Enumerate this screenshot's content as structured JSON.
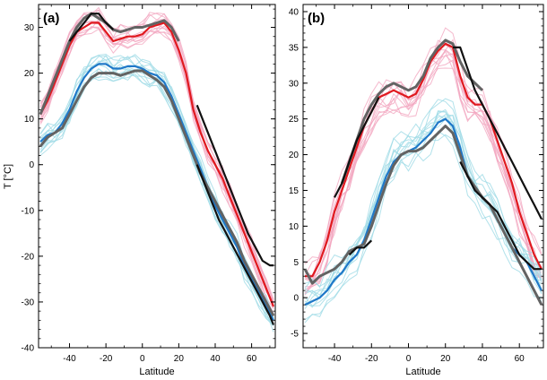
{
  "figure": {
    "ylabel": "T [°C]",
    "xlabel": "Latitude"
  },
  "chart_data": [
    {
      "type": "line",
      "panel_label": "(a)",
      "xlabel": "Latitude",
      "ylabel": "T [°C]",
      "xlim": [
        -57,
        73
      ],
      "ylim": [
        -40,
        35
      ],
      "xticks": [
        -40,
        -20,
        0,
        20,
        40,
        60
      ],
      "yticks": [
        -40,
        -30,
        -20,
        -10,
        0,
        10,
        20,
        30
      ],
      "grid": false,
      "series": [
        {
          "color": "#e0191f",
          "role": "warm-model-mean",
          "x": [
            -56,
            -52,
            -48,
            -44,
            -40,
            -36,
            -32,
            -28,
            -24,
            -20,
            -16,
            -12,
            -8,
            -4,
            0,
            4,
            8,
            12,
            16,
            20,
            24,
            28,
            32,
            36,
            40,
            44,
            48,
            52,
            56,
            60,
            64,
            68,
            72
          ],
          "y": [
            11,
            14,
            18,
            22,
            26,
            29,
            30,
            31,
            31,
            29,
            27,
            27.5,
            28,
            28,
            28.5,
            30,
            30.5,
            31,
            29,
            25,
            20,
            12,
            7,
            3,
            0,
            -3,
            -7,
            -11,
            -15,
            -19,
            -23,
            -27,
            -31
          ]
        },
        {
          "color": "#636363",
          "role": "warm-observed-grey",
          "x": [
            -56,
            -52,
            -48,
            -44,
            -40,
            -36,
            -32,
            -28,
            -24,
            -20,
            -16,
            -12,
            -8,
            -4,
            0,
            4,
            8,
            12,
            16,
            20
          ],
          "y": [
            11,
            15,
            19,
            23,
            27,
            30,
            32,
            33,
            32,
            31,
            29.5,
            29,
            29.5,
            30,
            30,
            30.5,
            31,
            31.5,
            30,
            27
          ]
        },
        {
          "color": "#111111",
          "role": "warm-observed-black",
          "x": [
            -40,
            -36,
            -32,
            -28,
            -24,
            -20,
            -16
          ],
          "y": [
            27,
            29,
            31,
            33,
            33,
            31,
            29.5
          ]
        },
        {
          "color": "#111111",
          "role": "warm-observed-black",
          "x": [
            30,
            34,
            38,
            42,
            46,
            50,
            54,
            58,
            62,
            66,
            70,
            72
          ],
          "y": [
            13,
            9,
            5,
            1,
            -3,
            -7,
            -11,
            -15,
            -18,
            -21,
            -22,
            -22
          ]
        },
        {
          "color": "#1f78c8",
          "role": "cold-model-mean",
          "x": [
            -56,
            -52,
            -48,
            -44,
            -40,
            -36,
            -32,
            -28,
            -24,
            -20,
            -16,
            -12,
            -8,
            -4,
            0,
            4,
            8,
            12,
            16,
            20,
            24,
            28,
            32,
            36,
            40,
            44,
            48,
            52,
            56,
            60,
            64,
            68,
            72
          ],
          "y": [
            5,
            6.5,
            7,
            9,
            12,
            16,
            19,
            21,
            22,
            22,
            21,
            21,
            21.5,
            21.5,
            21,
            20,
            19.5,
            18,
            15,
            11,
            7,
            3,
            -1,
            -5,
            -9,
            -12,
            -15,
            -18,
            -22,
            -25,
            -28,
            -31,
            -34
          ]
        },
        {
          "color": "#636363",
          "role": "cold-observed-grey",
          "x": [
            -56,
            -52,
            -48,
            -44,
            -40,
            -36,
            -32,
            -28,
            -24,
            -20,
            -16,
            -12,
            -8,
            -4,
            0,
            4,
            8,
            12,
            16,
            20,
            24,
            28,
            32,
            36,
            40,
            44,
            48,
            52,
            56,
            60,
            64,
            68,
            72
          ],
          "y": [
            4,
            6,
            7,
            8,
            11,
            14,
            17,
            19,
            20,
            20,
            20,
            19.5,
            20,
            20.5,
            20.5,
            19.5,
            18.5,
            17,
            14,
            10,
            6,
            2,
            -2,
            -5,
            -8,
            -11,
            -14,
            -17,
            -21,
            -24,
            -27,
            -30,
            -33
          ]
        },
        {
          "color": "#111111",
          "role": "cold-observed-black",
          "x": [
            30,
            34,
            38,
            42,
            46,
            50,
            54,
            58,
            62,
            66,
            70,
            72
          ],
          "y": [
            0,
            -4,
            -8,
            -12,
            -15,
            -18,
            -21,
            -24,
            -27,
            -30,
            -33,
            -35
          ]
        }
      ]
    },
    {
      "type": "line",
      "panel_label": "(b)",
      "xlabel": "Latitude",
      "ylabel": "",
      "xlim": [
        -57,
        73
      ],
      "ylim": [
        -7,
        41
      ],
      "xticks": [
        -40,
        -20,
        0,
        20,
        40,
        60
      ],
      "yticks": [
        -5,
        0,
        5,
        10,
        15,
        20,
        25,
        30,
        35,
        40
      ],
      "grid": false,
      "series": [
        {
          "color": "#e0191f",
          "role": "warm-model-mean",
          "x": [
            -56,
            -52,
            -48,
            -44,
            -40,
            -36,
            -32,
            -28,
            -24,
            -20,
            -16,
            -12,
            -8,
            -4,
            0,
            4,
            8,
            12,
            16,
            20,
            24,
            28,
            32,
            36,
            40,
            44,
            48,
            52,
            56,
            60,
            64,
            68,
            72
          ],
          "y": [
            3,
            3,
            5,
            8,
            12,
            15,
            18,
            21,
            24,
            26,
            28,
            28.5,
            29,
            28.5,
            28,
            28.5,
            30.5,
            33,
            34.5,
            35.5,
            35,
            31,
            28,
            27,
            27,
            25,
            22,
            19,
            16,
            12,
            9,
            6,
            4
          ]
        },
        {
          "color": "#636363",
          "role": "warm-observed-grey",
          "x": [
            -36,
            -32,
            -28,
            -24,
            -20,
            -16,
            -12,
            -8,
            -4,
            0,
            4,
            8,
            12,
            16,
            20,
            24,
            28,
            32,
            36,
            40
          ],
          "y": [
            16,
            19,
            22,
            25,
            27,
            28.5,
            29.5,
            30,
            29.5,
            29,
            29.5,
            31,
            33.5,
            35,
            36,
            35.5,
            33,
            31,
            30,
            29
          ]
        },
        {
          "color": "#111111",
          "role": "warm-observed-black",
          "x": [
            -40,
            -36,
            -32,
            -28,
            -24,
            -20,
            -16
          ],
          "y": [
            14,
            16,
            19,
            22,
            24,
            26,
            28
          ]
        },
        {
          "color": "#111111",
          "role": "warm-observed-black",
          "x": [
            24,
            28,
            32,
            36,
            40,
            44,
            48,
            52,
            56,
            60,
            64,
            68,
            72
          ],
          "y": [
            35,
            35,
            32,
            29,
            27,
            25,
            23,
            21,
            19,
            17,
            15,
            13,
            11
          ]
        },
        {
          "color": "#1f78c8",
          "role": "cold-model-mean",
          "x": [
            -56,
            -52,
            -48,
            -44,
            -40,
            -36,
            -32,
            -28,
            -24,
            -20,
            -16,
            -12,
            -8,
            -4,
            0,
            4,
            8,
            12,
            16,
            20,
            24,
            28,
            32,
            36,
            40,
            44,
            48,
            52,
            56,
            60,
            64,
            68,
            72
          ],
          "y": [
            -1,
            -0.5,
            0,
            1,
            2.5,
            3.5,
            5,
            6,
            8,
            11,
            14,
            17,
            19,
            20,
            20.5,
            21,
            22,
            23,
            24.5,
            25,
            24,
            21,
            17,
            15,
            14,
            13,
            11,
            9,
            7,
            6,
            5,
            3,
            1
          ]
        },
        {
          "color": "#636363",
          "role": "cold-observed-grey",
          "x": [
            -56,
            -52,
            -48,
            -44,
            -40,
            -36,
            -32,
            -28,
            -24,
            -20,
            -16,
            -12,
            -8,
            -4,
            0,
            4,
            8,
            12,
            16,
            20,
            24,
            28,
            32,
            36,
            40,
            44,
            48,
            52,
            56,
            60,
            64,
            68,
            72
          ],
          "y": [
            4,
            2,
            3,
            3.5,
            4,
            5,
            6.5,
            7,
            7.5,
            10,
            13,
            16,
            18.5,
            20,
            20.5,
            20.5,
            21,
            22,
            23,
            24,
            23,
            20,
            17,
            15.5,
            14,
            13,
            11,
            9,
            7,
            5,
            3,
            1,
            -1
          ]
        },
        {
          "color": "#111111",
          "role": "cold-observed-black",
          "x": [
            -32,
            -28,
            -24,
            -20
          ],
          "y": [
            6,
            7,
            7,
            8
          ]
        },
        {
          "color": "#111111",
          "role": "cold-observed-black",
          "x": [
            28,
            32,
            36,
            40,
            44,
            48,
            52,
            56,
            60,
            64,
            68,
            72
          ],
          "y": [
            19,
            17,
            15,
            14,
            13,
            12,
            10,
            8,
            6,
            5,
            4,
            4
          ]
        }
      ]
    }
  ]
}
